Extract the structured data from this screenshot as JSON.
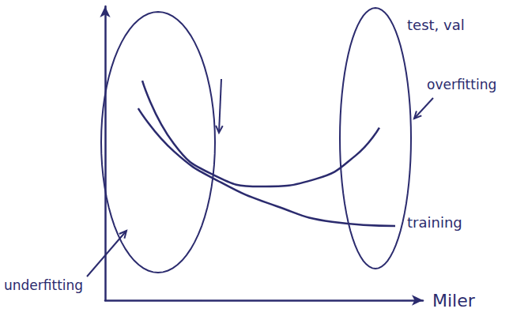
{
  "chart_data": {
    "type": "line",
    "x_label": "Miler",
    "xlim": [
      0,
      10
    ],
    "ylim": [
      0,
      10
    ],
    "xticks": [],
    "yticks": [],
    "tick_labels": false,
    "grid": false,
    "series": [
      {
        "name": "test, val",
        "color": "#2b2b6e",
        "x": [
          1.17,
          2.16,
          3.4,
          4.9,
          6.64,
          7.89,
          8.63
        ],
        "values": [
          7.47,
          5.33,
          4.27,
          3.87,
          4.13,
          4.93,
          5.87
        ]
      },
      {
        "name": "training",
        "color": "#2b2b6e",
        "x": [
          1.04,
          2.16,
          3.66,
          5.4,
          7.14,
          9.13
        ],
        "values": [
          6.53,
          5.07,
          4.0,
          3.2,
          2.67,
          2.53
        ]
      }
    ],
    "annotations": [
      "underfitting",
      "overfitting"
    ]
  }
}
